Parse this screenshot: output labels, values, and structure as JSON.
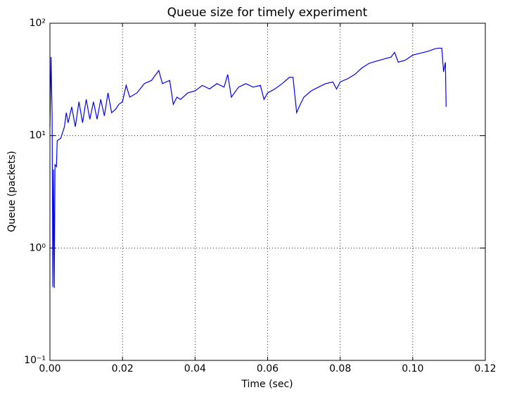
{
  "chart_data": {
    "type": "line",
    "title": "Queue size for timely experiment",
    "xlabel": "Time (sec)",
    "ylabel": "Queue (packets)",
    "log_y": true,
    "grid": true,
    "xlim": [
      0,
      0.12
    ],
    "ylim": [
      0.1,
      100
    ],
    "xticks": [
      {
        "value": 0,
        "label": "0.00"
      },
      0.02,
      0.04,
      0.06,
      0.08,
      {
        "value": 0.1,
        "label": "0.10"
      },
      0.12
    ],
    "yticks": [
      {
        "value": 0.1,
        "label": "10⁻¹"
      },
      {
        "value": 1,
        "label": "10⁰"
      },
      {
        "value": 10,
        "label": "10¹"
      },
      {
        "value": 100,
        "label": "10²"
      }
    ],
    "x": [
      0,
      0.0003,
      0.0006,
      0.0008,
      0.001,
      0.0012,
      0.0014,
      0.0018,
      0.002,
      0.003,
      0.004,
      0.0045,
      0.005,
      0.006,
      0.007,
      0.008,
      0.009,
      0.01,
      0.011,
      0.012,
      0.013,
      0.014,
      0.015,
      0.016,
      0.017,
      0.018,
      0.019,
      0.02,
      0.021,
      0.022,
      0.024,
      0.026,
      0.028,
      0.03,
      0.031,
      0.032,
      0.033,
      0.034,
      0.035,
      0.036,
      0.038,
      0.04,
      0.042,
      0.044,
      0.046,
      0.048,
      0.049,
      0.05,
      0.052,
      0.054,
      0.056,
      0.058,
      0.059,
      0.06,
      0.062,
      0.064,
      0.066,
      0.067,
      0.068,
      0.069,
      0.07,
      0.072,
      0.074,
      0.076,
      0.078,
      0.079,
      0.08,
      0.082,
      0.084,
      0.086,
      0.088,
      0.09,
      0.092,
      0.094,
      0.095,
      0.096,
      0.098,
      0.1,
      0.102,
      0.104,
      0.106,
      0.107,
      0.108,
      0.1085,
      0.109,
      0.1092
    ],
    "series": [
      {
        "name": "queue",
        "color": "#0000ff",
        "values": [
          12,
          50,
          15,
          0.45,
          5,
          0.44,
          5.5,
          5.3,
          9,
          9.5,
          12,
          16,
          13,
          18,
          12,
          20,
          13,
          21,
          14,
          20,
          14,
          21,
          15,
          24,
          16,
          17,
          19,
          20,
          28,
          22,
          24,
          29,
          31,
          38,
          29,
          30,
          31,
          19,
          22,
          21,
          24,
          25,
          28,
          26,
          29,
          27,
          35,
          22,
          27,
          29,
          27,
          28,
          21,
          24,
          26,
          29,
          33,
          33,
          16,
          19,
          22,
          25,
          27,
          29,
          30,
          26,
          30,
          32,
          35,
          40,
          44,
          46,
          48,
          50,
          55,
          45,
          47,
          52,
          54,
          56,
          59,
          60,
          60,
          37,
          45,
          18
        ]
      }
    ]
  }
}
